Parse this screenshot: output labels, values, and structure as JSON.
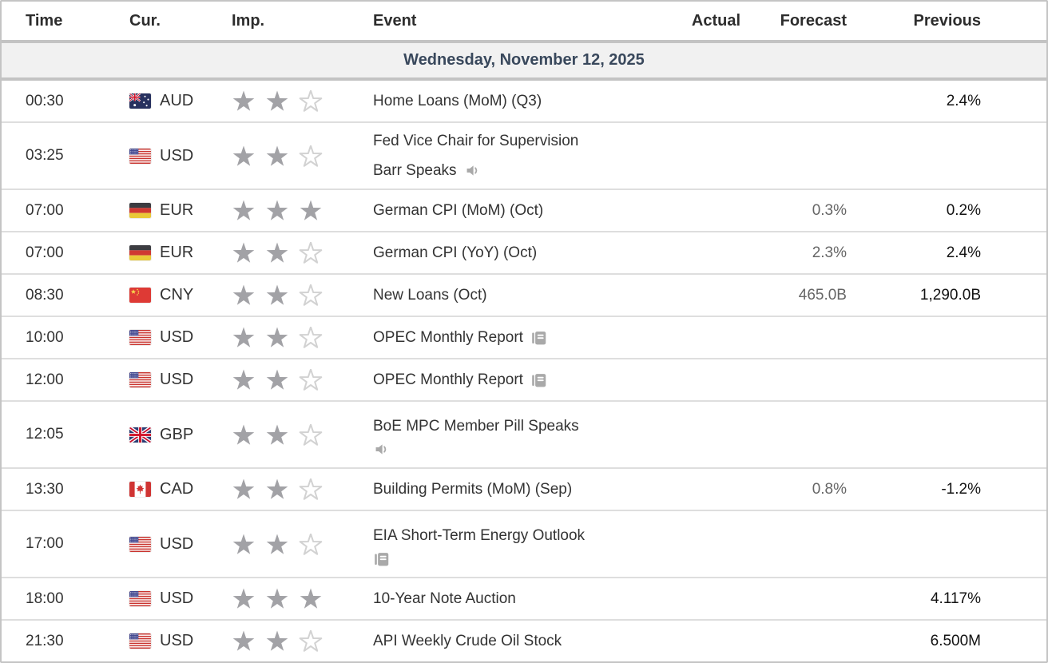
{
  "colors": {
    "date_text": "#39485c",
    "date_bg": "#f1f1f1",
    "star_filled": "#a2a2a6",
    "star_empty": "#d2d2d2",
    "icon_gray": "#a9a9a9",
    "forecast_text": "#666666",
    "previous_text": "#121212",
    "row_border": "#dedede",
    "band_border": "#c3c3c3"
  },
  "table": {
    "columns": [
      {
        "key": "time",
        "label": "Time"
      },
      {
        "key": "cur",
        "label": "Cur."
      },
      {
        "key": "imp",
        "label": "Imp."
      },
      {
        "key": "event",
        "label": "Event"
      },
      {
        "key": "actual",
        "label": "Actual"
      },
      {
        "key": "forecast",
        "label": "Forecast"
      },
      {
        "key": "previous",
        "label": "Previous"
      }
    ],
    "date_header": "Wednesday, November 12, 2025",
    "importance_max": 3,
    "rows": [
      {
        "time": "00:30",
        "currency": "AUD",
        "flag": "australia-flag",
        "importance": 2,
        "event_lines": [
          "Home Loans (MoM) (Q3)"
        ],
        "event_icon": null,
        "icon_on_new_line": false,
        "actual": "",
        "forecast": "",
        "previous": "2.4%"
      },
      {
        "time": "03:25",
        "currency": "USD",
        "flag": "united-states-flag",
        "importance": 2,
        "event_lines": [
          "Fed Vice Chair for Supervision",
          "Barr Speaks"
        ],
        "event_icon": "speaker-icon",
        "icon_on_new_line": false,
        "actual": "",
        "forecast": "",
        "previous": ""
      },
      {
        "time": "07:00",
        "currency": "EUR",
        "flag": "germany-flag",
        "importance": 3,
        "event_lines": [
          "German CPI (MoM) (Oct)"
        ],
        "event_icon": null,
        "icon_on_new_line": false,
        "actual": "",
        "forecast": "0.3%",
        "previous": "0.2%"
      },
      {
        "time": "07:00",
        "currency": "EUR",
        "flag": "germany-flag",
        "importance": 2,
        "event_lines": [
          "German CPI (YoY) (Oct)"
        ],
        "event_icon": null,
        "icon_on_new_line": false,
        "actual": "",
        "forecast": "2.3%",
        "previous": "2.4%"
      },
      {
        "time": "08:30",
        "currency": "CNY",
        "flag": "china-flag",
        "importance": 2,
        "event_lines": [
          "New Loans (Oct)"
        ],
        "event_icon": null,
        "icon_on_new_line": false,
        "actual": "",
        "forecast": "465.0B",
        "previous": "1,290.0B"
      },
      {
        "time": "10:00",
        "currency": "USD",
        "flag": "united-states-flag",
        "importance": 2,
        "event_lines": [
          "OPEC Monthly Report"
        ],
        "event_icon": "report-icon",
        "icon_on_new_line": false,
        "actual": "",
        "forecast": "",
        "previous": ""
      },
      {
        "time": "12:00",
        "currency": "USD",
        "flag": "united-states-flag",
        "importance": 2,
        "event_lines": [
          "OPEC Monthly Report"
        ],
        "event_icon": "report-icon",
        "icon_on_new_line": false,
        "actual": "",
        "forecast": "",
        "previous": ""
      },
      {
        "time": "12:05",
        "currency": "GBP",
        "flag": "united-kingdom-flag",
        "importance": 2,
        "event_lines": [
          "BoE MPC Member Pill Speaks"
        ],
        "event_icon": "speaker-icon",
        "icon_on_new_line": true,
        "actual": "",
        "forecast": "",
        "previous": ""
      },
      {
        "time": "13:30",
        "currency": "CAD",
        "flag": "canada-flag",
        "importance": 2,
        "event_lines": [
          "Building Permits (MoM) (Sep)"
        ],
        "event_icon": null,
        "icon_on_new_line": false,
        "actual": "",
        "forecast": "0.8%",
        "previous": "-1.2%"
      },
      {
        "time": "17:00",
        "currency": "USD",
        "flag": "united-states-flag",
        "importance": 2,
        "event_lines": [
          "EIA Short-Term Energy Outlook"
        ],
        "event_icon": "report-icon",
        "icon_on_new_line": true,
        "actual": "",
        "forecast": "",
        "previous": ""
      },
      {
        "time": "18:00",
        "currency": "USD",
        "flag": "united-states-flag",
        "importance": 3,
        "event_lines": [
          "10-Year Note Auction"
        ],
        "event_icon": null,
        "icon_on_new_line": false,
        "actual": "",
        "forecast": "",
        "previous": "4.117%"
      },
      {
        "time": "21:30",
        "currency": "USD",
        "flag": "united-states-flag",
        "importance": 2,
        "event_lines": [
          "API Weekly Crude Oil Stock"
        ],
        "event_icon": null,
        "icon_on_new_line": false,
        "actual": "",
        "forecast": "",
        "previous": "6.500M"
      }
    ]
  }
}
